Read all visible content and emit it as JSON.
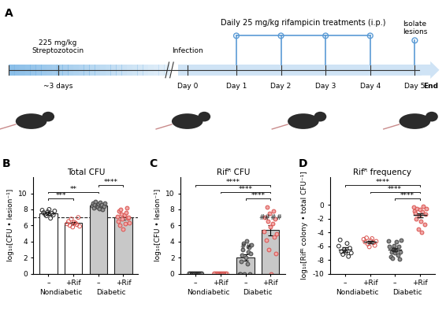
{
  "panel_letters": [
    "A",
    "B",
    "C",
    "D"
  ],
  "timeline": {
    "treatment": "Daily 25 mg/kg rifampicin treatments (i.p.)",
    "stz": "225 mg/kg\nStreptozotocin",
    "pre": "~3 days",
    "infection": "Infection",
    "days": [
      "Day 0",
      "Day 1",
      "Day 2",
      "Day 3",
      "Day 4",
      "Day 5"
    ],
    "isolate": "Isolate\nlesions",
    "end": "End"
  },
  "chart_data": [
    {
      "type": "bar",
      "title": "Total CFU",
      "y_label": "log₁₀[CFU • lesion⁻¹]",
      "categories": [
        "–",
        "+Rif",
        "–",
        "+Rif"
      ],
      "groups": [
        "Nondiabetic",
        "Diabetic"
      ],
      "values": [
        7.5,
        6.3,
        8.5,
        7.0
      ],
      "errors": [
        0.2,
        0.15,
        0.1,
        0.25
      ],
      "points": [
        [
          7.9,
          7.6,
          7.4,
          7.2,
          7.7,
          8.0,
          6.9,
          7.5,
          7.3,
          7.8
        ],
        [
          6.2,
          6.5,
          6.0,
          6.8,
          5.8,
          6.4,
          6.3,
          6.1,
          7.0,
          5.9
        ],
        [
          8.5,
          8.8,
          8.2,
          8.6,
          9.0,
          8.4,
          8.3,
          8.7,
          8.1,
          8.9,
          8.5,
          8.6,
          8.0,
          8.4,
          8.8
        ],
        [
          7.1,
          6.5,
          7.8,
          6.0,
          8.0,
          7.4,
          6.8,
          5.5,
          7.3,
          6.2,
          7.6,
          8.2,
          6.9,
          7.0,
          6.3
        ]
      ],
      "colors": [
        "#ffffff",
        "#ffffff",
        "#c8c8c8",
        "#c8c8c8"
      ],
      "reference_line": 7,
      "significance": [
        {
          "from": 0,
          "to": 1,
          "label": "***"
        },
        {
          "from": 0,
          "to": 2,
          "label": "**"
        },
        {
          "from": 2,
          "to": 3,
          "label": "****"
        }
      ],
      "ylim": [
        0,
        12
      ],
      "yticks": [
        0,
        2,
        4,
        6,
        8,
        10
      ]
    },
    {
      "type": "bar",
      "title": "Rifᴿ CFU",
      "y_label": "log₁₀[CFU • lesion⁻¹]",
      "categories": [
        "–",
        "+Rif",
        "–",
        "+Rif"
      ],
      "groups": [
        "Nondiabetic",
        "Diabetic"
      ],
      "values": [
        0,
        0,
        2.0,
        5.4
      ],
      "errors": [
        0,
        0,
        0.4,
        0.6
      ],
      "points": [
        [
          0,
          0,
          0,
          0,
          0,
          0,
          0,
          0,
          0,
          0
        ],
        [
          0,
          0,
          0,
          0,
          0,
          0,
          0,
          0,
          0,
          0
        ],
        [
          0,
          0,
          1.5,
          2.3,
          3.0,
          3.8,
          0,
          2.0,
          4.1,
          1.2,
          2.7,
          3.3,
          0,
          2.5,
          3.6
        ],
        [
          5.3,
          7.0,
          4.2,
          8.3,
          6.5,
          3.0,
          7.5,
          5.8,
          0,
          6.2,
          7.8,
          4.6,
          6.8,
          2.5,
          5.0
        ]
      ],
      "colors": [
        "#ffffff",
        "#ffffff",
        "#c8c8c8",
        "#c8c8c8"
      ],
      "marks": [
        {
          "category": 2,
          "label": "##"
        },
        {
          "category": 3,
          "label": "####"
        }
      ],
      "significance": [
        {
          "from": 2,
          "to": 3,
          "label": "****"
        },
        {
          "from": 1,
          "to": 3,
          "label": "****"
        },
        {
          "from": 0,
          "to": 3,
          "label": "****"
        }
      ],
      "ylim": [
        0,
        12
      ],
      "yticks": [
        0,
        2,
        4,
        6,
        8,
        10
      ]
    },
    {
      "type": "scatter",
      "title": "Rifᴿ frequency",
      "y_label": "log₁₀[Rifᴿ colony • total CFU⁻¹]",
      "categories": [
        "–",
        "+Rif",
        "–",
        "+Rif"
      ],
      "groups": [
        "Nondiabetic",
        "Diabetic"
      ],
      "values": [
        -6.5,
        -5.4,
        -6.5,
        -1.5
      ],
      "errors": [
        0.3,
        0.15,
        0.25,
        0.3
      ],
      "points": [
        [
          -6.0,
          -5.1,
          -6.8,
          -7.2,
          -6.5,
          -6.9,
          -5.6,
          -7.5,
          -6.3,
          -7.0
        ],
        [
          -5.0,
          -5.4,
          -4.8,
          -5.7,
          -6.1,
          -5.2,
          -4.9,
          -5.5,
          -5.9,
          -5.3
        ],
        [
          -5.2,
          -6.0,
          -7.5,
          -6.8,
          -7.8,
          -6.4,
          -5.9,
          -7.0,
          -6.6,
          -5.4,
          -7.3,
          -6.1,
          -7.9,
          -6.8,
          -5.1
        ],
        [
          -0.3,
          -0.9,
          -1.2,
          -2.0,
          -0.5,
          -3.5,
          -1.6,
          -0.7,
          -2.4,
          -4.0,
          -1.0,
          -0.2,
          -2.8,
          -1.4,
          -0.6
        ]
      ],
      "significance": [
        {
          "from": 2,
          "to": 3,
          "label": "****"
        },
        {
          "from": 1,
          "to": 3,
          "label": "****"
        },
        {
          "from": 0,
          "to": 3,
          "label": "****"
        }
      ],
      "ylim": [
        -10,
        4
      ],
      "yticks": [
        -10,
        -8,
        -6,
        -4,
        -2,
        0
      ]
    }
  ]
}
